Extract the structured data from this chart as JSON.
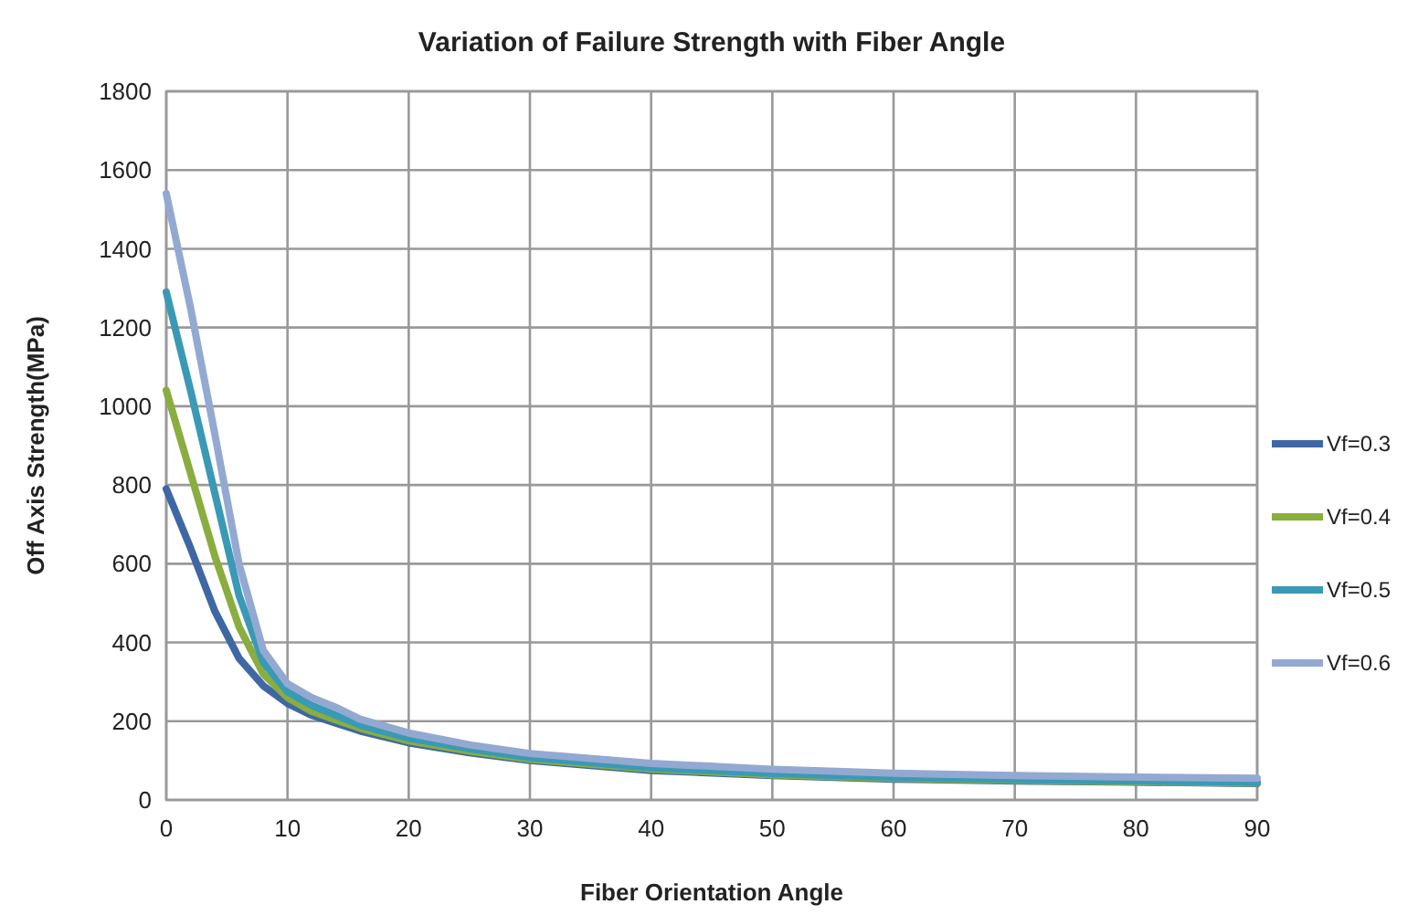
{
  "chart_data": {
    "type": "line",
    "title": "Variation of Failure Strength with Fiber Angle",
    "xlabel": "Fiber Orientation Angle",
    "ylabel": "Off Axis Strength(MPa)",
    "x": [
      0,
      2,
      4,
      6,
      8,
      10,
      12,
      14,
      16,
      20,
      25,
      30,
      40,
      50,
      60,
      70,
      80,
      90
    ],
    "xlim": [
      0,
      90
    ],
    "xticks": [
      0,
      10,
      20,
      30,
      40,
      50,
      60,
      70,
      80,
      90
    ],
    "ylim": [
      0,
      1800
    ],
    "yticks": [
      0,
      200,
      400,
      600,
      800,
      1000,
      1200,
      1400,
      1600,
      1800
    ],
    "grid": true,
    "legend": "right",
    "line_style": "solid",
    "series": [
      {
        "name": "Vf=0.3",
        "color": "#3f67a4",
        "values": [
          790,
          640,
          480,
          360,
          290,
          245,
          215,
          195,
          175,
          145,
          120,
          100,
          75,
          62,
          53,
          48,
          45,
          42
        ]
      },
      {
        "name": "Vf=0.4",
        "color": "#8aad3f",
        "values": [
          1040,
          830,
          620,
          440,
          320,
          260,
          225,
          203,
          182,
          150,
          124,
          103,
          78,
          64,
          55,
          50,
          46,
          43
        ]
      },
      {
        "name": "Vf=0.5",
        "color": "#3a9ab5",
        "values": [
          1290,
          1040,
          780,
          520,
          350,
          275,
          240,
          215,
          190,
          157,
          130,
          108,
          82,
          67,
          58,
          52,
          48,
          45
        ]
      },
      {
        "name": "Vf=0.6",
        "color": "#93a9d2",
        "values": [
          1540,
          1250,
          930,
          600,
          380,
          295,
          260,
          235,
          205,
          170,
          140,
          118,
          93,
          78,
          68,
          62,
          58,
          55
        ]
      }
    ]
  }
}
